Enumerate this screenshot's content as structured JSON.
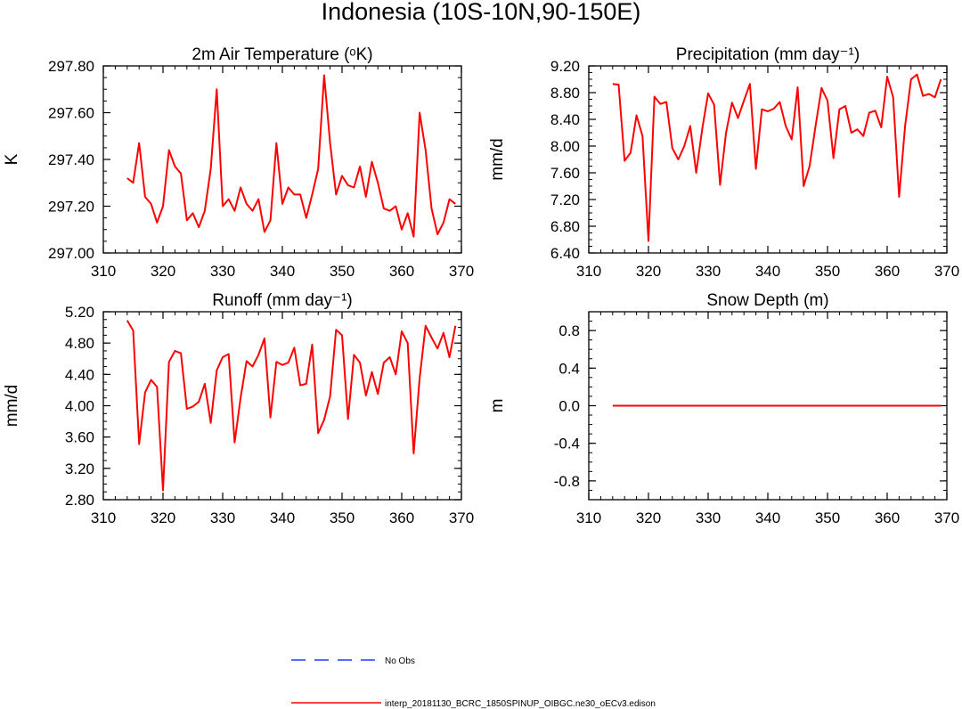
{
  "figure_title": "Indonesia (10S-10N,90-150E)",
  "legend": {
    "obs_label": "No Obs",
    "model_label": "interp_20181130_BCRC_1850SPINUP_OIBGC.ne30_oECv3.edison",
    "obs_color": "#1f3cff",
    "model_color": "#ff0000"
  },
  "chart_data": [
    {
      "type": "line",
      "title": "2m Air Temperature (ᵒK)",
      "xlabel": "",
      "ylabel": "K",
      "xlim": [
        310,
        370
      ],
      "ylim": [
        297.0,
        297.8
      ],
      "xticks": [
        "310",
        "320",
        "330",
        "340",
        "350",
        "360",
        "370"
      ],
      "yticks": [
        "297.00",
        "297.20",
        "297.40",
        "297.60",
        "297.80"
      ],
      "series": [
        {
          "name": "interp_20181130_BCRC_1850SPINUP_OIBGC.ne30_oECv3.edison",
          "color": "#ff0000",
          "x": [
            314,
            315,
            316,
            317,
            318,
            319,
            320,
            321,
            322,
            323,
            324,
            325,
            326,
            327,
            328,
            329,
            330,
            331,
            332,
            333,
            334,
            335,
            336,
            337,
            338,
            339,
            340,
            341,
            342,
            343,
            344,
            345,
            346,
            347,
            348,
            349,
            350,
            351,
            352,
            353,
            354,
            355,
            356,
            357,
            358,
            359,
            360,
            361,
            362,
            363,
            364,
            365,
            366,
            367,
            368,
            369
          ],
          "values": [
            297.32,
            297.3,
            297.47,
            297.24,
            297.21,
            297.13,
            297.2,
            297.44,
            297.37,
            297.34,
            297.14,
            297.17,
            297.11,
            297.18,
            297.36,
            297.7,
            297.2,
            297.23,
            297.18,
            297.28,
            297.21,
            297.18,
            297.23,
            297.09,
            297.14,
            297.47,
            297.21,
            297.28,
            297.25,
            297.25,
            297.15,
            297.25,
            297.36,
            297.76,
            297.47,
            297.25,
            297.33,
            297.29,
            297.28,
            297.37,
            297.24,
            297.39,
            297.3,
            297.19,
            297.18,
            297.2,
            297.1,
            297.17,
            297.07,
            297.6,
            297.44,
            297.19,
            297.08,
            297.13,
            297.23,
            297.21
          ]
        }
      ]
    },
    {
      "type": "line",
      "title": "Precipitation (mm day⁻¹)",
      "xlabel": "",
      "ylabel": "mm/d",
      "xlim": [
        310,
        370
      ],
      "ylim": [
        6.4,
        9.2
      ],
      "xticks": [
        "310",
        "320",
        "330",
        "340",
        "350",
        "360",
        "370"
      ],
      "yticks": [
        "6.40",
        "6.80",
        "7.20",
        "7.60",
        "8.00",
        "8.40",
        "8.80",
        "9.20"
      ],
      "series": [
        {
          "name": "interp_20181130_BCRC_1850SPINUP_OIBGC.ne30_oECv3.edison",
          "color": "#ff0000",
          "x": [
            314,
            315,
            316,
            317,
            318,
            319,
            320,
            321,
            322,
            323,
            324,
            325,
            326,
            327,
            328,
            329,
            330,
            331,
            332,
            333,
            334,
            335,
            336,
            337,
            338,
            339,
            340,
            341,
            342,
            343,
            344,
            345,
            346,
            347,
            348,
            349,
            350,
            351,
            352,
            353,
            354,
            355,
            356,
            357,
            358,
            359,
            360,
            361,
            362,
            363,
            364,
            365,
            366,
            367,
            368,
            369
          ],
          "values": [
            8.93,
            8.92,
            7.78,
            7.9,
            8.46,
            8.15,
            6.58,
            8.74,
            8.63,
            8.66,
            7.97,
            7.8,
            8.0,
            8.3,
            7.6,
            8.25,
            8.79,
            8.62,
            7.42,
            8.2,
            8.65,
            8.42,
            8.68,
            8.93,
            7.66,
            8.55,
            8.52,
            8.56,
            8.66,
            8.3,
            8.1,
            8.88,
            7.4,
            7.7,
            8.3,
            8.87,
            8.68,
            7.82,
            8.55,
            8.6,
            8.2,
            8.25,
            8.15,
            8.5,
            8.53,
            8.28,
            9.04,
            8.73,
            7.24,
            8.3,
            9.0,
            9.07,
            8.75,
            8.78,
            8.73,
            9.0
          ]
        }
      ]
    },
    {
      "type": "line",
      "title": "Runoff (mm day⁻¹)",
      "xlabel": "",
      "ylabel": "mm/d",
      "xlim": [
        310,
        370
      ],
      "ylim": [
        2.8,
        5.2
      ],
      "xticks": [
        "310",
        "320",
        "330",
        "340",
        "350",
        "360",
        "370"
      ],
      "yticks": [
        "2.80",
        "3.20",
        "3.60",
        "4.00",
        "4.40",
        "4.80",
        "5.20"
      ],
      "series": [
        {
          "name": "interp_20181130_BCRC_1850SPINUP_OIBGC.ne30_oECv3.edison",
          "color": "#ff0000",
          "x": [
            314,
            315,
            316,
            317,
            318,
            319,
            320,
            321,
            322,
            323,
            324,
            325,
            326,
            327,
            328,
            329,
            330,
            331,
            332,
            333,
            334,
            335,
            336,
            337,
            338,
            339,
            340,
            341,
            342,
            343,
            344,
            345,
            346,
            347,
            348,
            349,
            350,
            351,
            352,
            353,
            354,
            355,
            356,
            357,
            358,
            359,
            360,
            361,
            362,
            363,
            364,
            365,
            366,
            367,
            368,
            369
          ],
          "values": [
            5.09,
            4.96,
            3.51,
            4.17,
            4.33,
            4.24,
            2.92,
            4.56,
            4.7,
            4.67,
            3.96,
            3.99,
            4.05,
            4.28,
            3.78,
            4.45,
            4.62,
            4.66,
            3.53,
            4.1,
            4.57,
            4.5,
            4.65,
            4.86,
            3.85,
            4.56,
            4.52,
            4.55,
            4.74,
            4.26,
            4.28,
            4.78,
            3.65,
            3.82,
            4.12,
            4.97,
            4.9,
            3.83,
            4.65,
            4.55,
            4.13,
            4.43,
            4.15,
            4.55,
            4.62,
            4.4,
            4.95,
            4.8,
            3.39,
            4.35,
            5.02,
            4.87,
            4.73,
            4.93,
            4.62,
            5.02
          ]
        }
      ]
    },
    {
      "type": "line",
      "title": "Snow Depth (m)",
      "xlabel": "",
      "ylabel": "m",
      "xlim": [
        310,
        370
      ],
      "ylim": [
        -1.0,
        1.0
      ],
      "xticks": [
        "310",
        "320",
        "330",
        "340",
        "350",
        "360",
        "370"
      ],
      "yticks": [
        "-0.8",
        "-0.4",
        "0.0",
        "0.4",
        "0.8"
      ],
      "series": [
        {
          "name": "interp_20181130_BCRC_1850SPINUP_OIBGC.ne30_oECv3.edison",
          "color": "#ff0000",
          "x": [
            314,
            369
          ],
          "values": [
            0.0,
            0.0
          ]
        }
      ]
    }
  ]
}
